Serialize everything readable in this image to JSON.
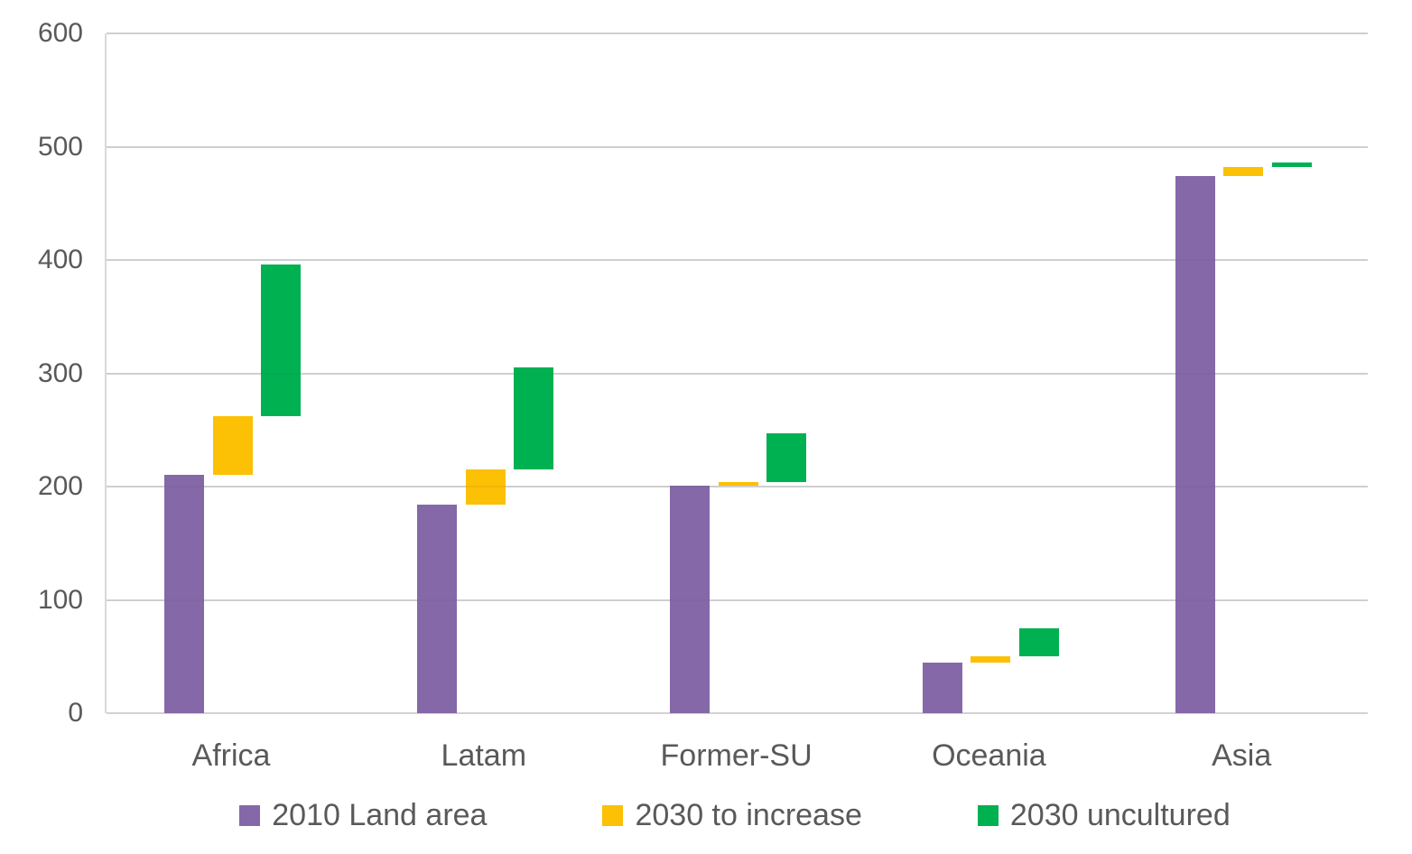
{
  "chart_data": {
    "type": "bar",
    "subtype": "clustered-waterfall-columns",
    "title": "",
    "xlabel": "",
    "ylabel": "",
    "categories": [
      "Africa",
      "Latam",
      "Former-SU",
      "Oceania",
      "Asia"
    ],
    "series": [
      {
        "name": "2010 Land area",
        "color": "#8468A8",
        "ranges": [
          [
            0,
            210
          ],
          [
            0,
            184
          ],
          [
            0,
            201
          ],
          [
            0,
            45
          ],
          [
            0,
            474
          ]
        ]
      },
      {
        "name": "2030 to increase",
        "color": "#FCC004",
        "ranges": [
          [
            210,
            262
          ],
          [
            184,
            215
          ],
          [
            201,
            204
          ],
          [
            45,
            50
          ],
          [
            474,
            482
          ]
        ]
      },
      {
        "name": "2030 uncultured",
        "color": "#00B151",
        "ranges": [
          [
            262,
            396
          ],
          [
            215,
            305
          ],
          [
            204,
            247
          ],
          [
            50,
            75
          ],
          [
            482,
            486
          ]
        ]
      }
    ],
    "ylim": [
      0,
      600
    ],
    "yticks": [
      0,
      100,
      200,
      300,
      400,
      500,
      600
    ],
    "grid": "horizontal",
    "legend_position": "bottom"
  },
  "colors": {
    "axis_text": "#595959",
    "gridline": "#D9D9D9",
    "background": "#FFFFFF"
  }
}
